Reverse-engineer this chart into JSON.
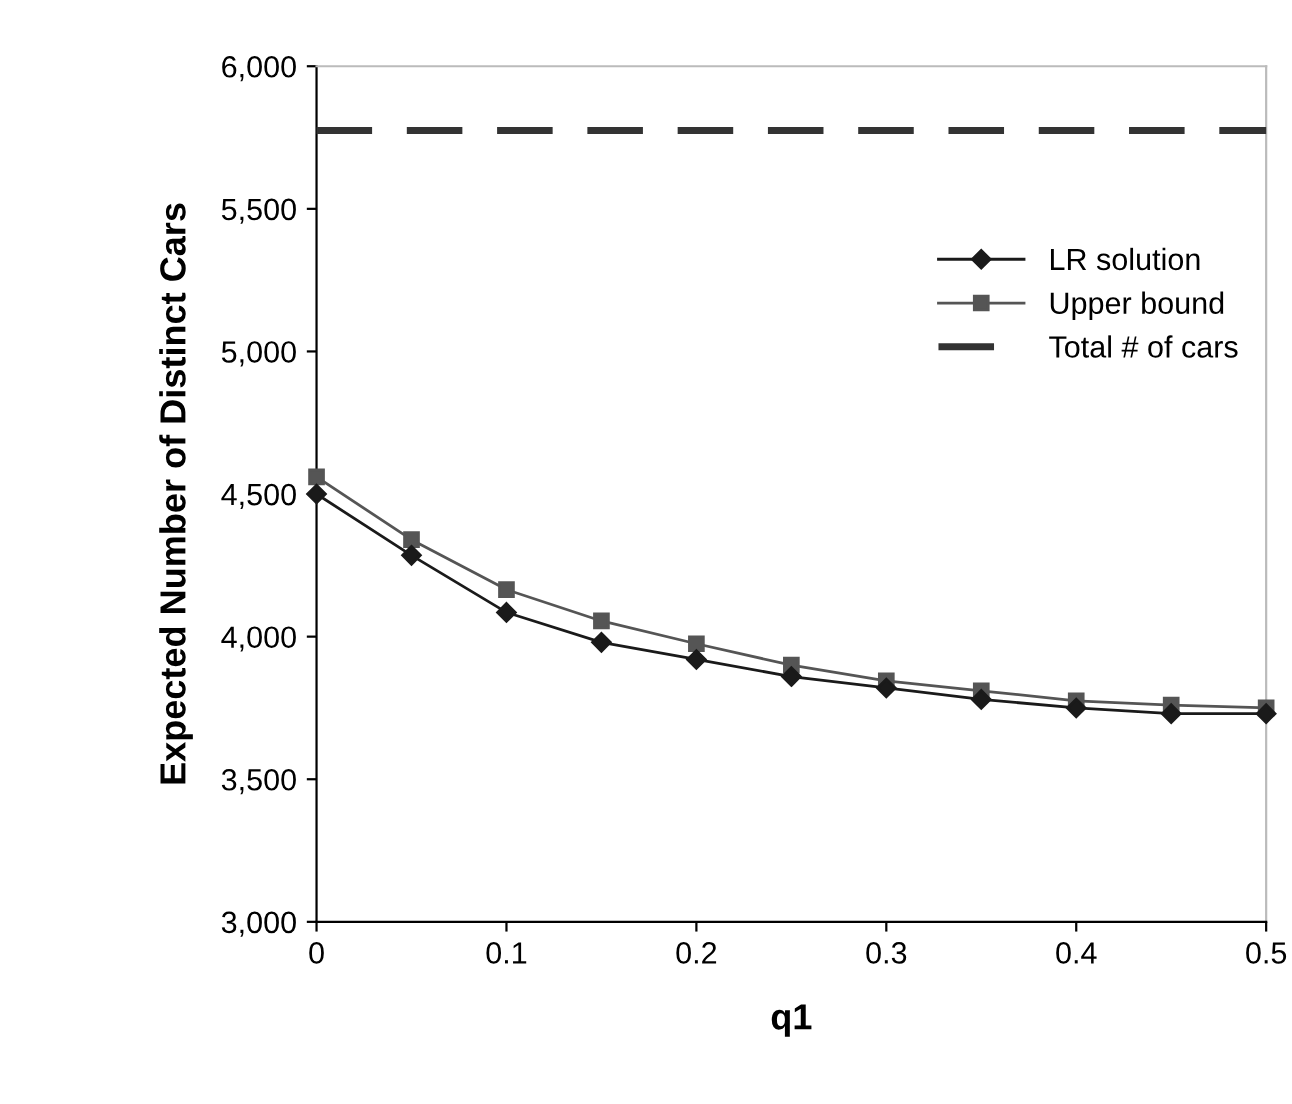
{
  "chart_data": {
    "type": "line",
    "xlabel": "q1",
    "ylabel": "Expected Number of Distinct Cars",
    "x": [
      0,
      0.05,
      0.1,
      0.15,
      0.2,
      0.25,
      0.3,
      0.35,
      0.4,
      0.45,
      0.5
    ],
    "series": [
      {
        "name": "LR solution",
        "color": "#1a1a1a",
        "marker": "diamond",
        "line_style": "solid",
        "values": [
          4500,
          4285,
          4085,
          3980,
          3920,
          3860,
          3820,
          3780,
          3750,
          3730,
          3730
        ]
      },
      {
        "name": "Upper bound",
        "color": "#555555",
        "marker": "square",
        "line_style": "solid",
        "values": [
          4560,
          4340,
          4165,
          4055,
          3975,
          3900,
          3845,
          3810,
          3775,
          3760,
          3750
        ]
      },
      {
        "name": "Total # of cars",
        "color": "#333333",
        "marker": "none",
        "line_style": "dashed",
        "x": [
          0,
          0.5
        ],
        "values": [
          5775,
          5775
        ]
      }
    ],
    "xlim": [
      0,
      0.5
    ],
    "xticks": [
      0,
      0.1,
      0.2,
      0.3,
      0.4,
      0.5
    ],
    "ylim": [
      3000,
      6000
    ],
    "yticks": [
      {
        "value": 3000,
        "label": "3,000"
      },
      {
        "value": 3500,
        "label": "3,500"
      },
      {
        "value": 4000,
        "label": "4,000"
      },
      {
        "value": 4500,
        "label": "4,500"
      },
      {
        "value": 5000,
        "label": "5,000"
      },
      {
        "value": 5500,
        "label": "5,500"
      },
      {
        "value": 6000,
        "label": "6,000"
      }
    ],
    "grid": false,
    "legend": "right"
  }
}
